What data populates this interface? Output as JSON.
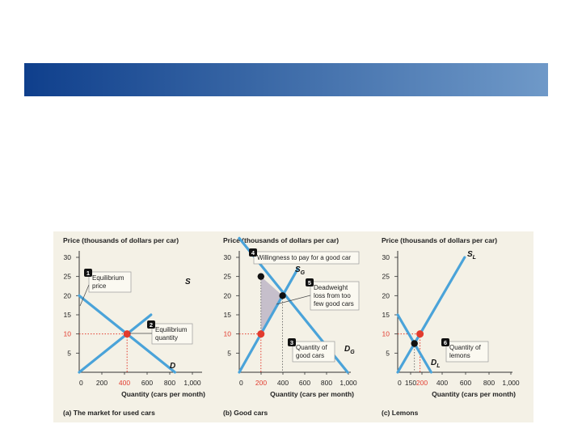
{
  "slide": {
    "banner_color_start": "#0f3f8c",
    "banner_color_end": "#6f99c8",
    "panel_bg": "#f4f1e6"
  },
  "colors": {
    "curve": "#4aa3d9",
    "equilibrium_red": "#e23b2e",
    "black_point": "#111111",
    "deadweight_fill": "#c6bfcb",
    "note_fill": "#fbf9f1"
  },
  "chart_data": [
    {
      "type": "line",
      "title": "(a) The market for used cars",
      "ylabel": "Price (thousands of dollars per car)",
      "xlabel": "Quantity (cars per month)",
      "xlim": [
        0,
        1000
      ],
      "ylim": [
        0,
        30
      ],
      "x_ticks": [
        "0",
        "200",
        "400",
        "600",
        "800",
        "1,000"
      ],
      "y_ticks": [
        "5",
        "10",
        "15",
        "20",
        "25",
        "30"
      ],
      "highlight_x_tick": "400",
      "highlight_y_tick": "10",
      "series": [
        {
          "name": "S",
          "points": [
            [
              0,
              0
            ],
            [
              600,
              15
            ]
          ]
        },
        {
          "name": "D",
          "points": [
            [
              0,
              20
            ],
            [
              800,
              0
            ]
          ]
        }
      ],
      "equilibrium": {
        "x": 400,
        "y": 10
      },
      "annotations": [
        {
          "num": "1",
          "text": [
            "Equilibrium",
            "price"
          ]
        },
        {
          "num": "2",
          "text": [
            "Equilibrium",
            "quantity"
          ]
        }
      ]
    },
    {
      "type": "line",
      "title": "(b) Good cars",
      "ylabel": "Price (thousands of dollars per car)",
      "xlabel": "Quantity (cars per month)",
      "xlim": [
        0,
        1000
      ],
      "ylim": [
        0,
        30
      ],
      "x_ticks": [
        "0",
        "200",
        "400",
        "600",
        "800",
        "1,000"
      ],
      "y_ticks": [
        "5",
        "10",
        "15",
        "20",
        "25",
        "30"
      ],
      "highlight_x_tick": "200",
      "highlight_y_tick": "10",
      "series": [
        {
          "name": "S",
          "sub": "G",
          "points": [
            [
              0,
              0
            ],
            [
              400,
              20
            ],
            [
              540,
              27
            ]
          ]
        },
        {
          "name": "D",
          "sub": "G",
          "points": [
            [
              0,
              35
            ],
            [
              1000,
              0
            ]
          ]
        }
      ],
      "market_point": {
        "x": 200,
        "y": 10
      },
      "willingness_point": {
        "x": 200,
        "y": 25
      },
      "efficient_point": {
        "x": 400,
        "y": 20
      },
      "deadweight": [
        [
          200,
          25
        ],
        [
          400,
          20
        ],
        [
          200,
          10
        ]
      ],
      "annotations": [
        {
          "num": "4",
          "text": [
            "Willingness to pay for a good car"
          ]
        },
        {
          "num": "5",
          "text": [
            "Deadweight",
            "loss from too",
            "few good cars"
          ]
        },
        {
          "num": "3",
          "text": [
            "Quantity of",
            "good cars"
          ]
        }
      ]
    },
    {
      "type": "line",
      "title": "(c) Lemons",
      "ylabel": "Price (thousands of dollars per car)",
      "xlabel": "Quantity (cars per month)",
      "xlim": [
        0,
        1000
      ],
      "ylim": [
        0,
        30
      ],
      "x_ticks": [
        "0",
        "150",
        "200",
        "400",
        "600",
        "800",
        "1,000"
      ],
      "y_ticks": [
        "5",
        "10",
        "15",
        "20",
        "25",
        "30"
      ],
      "highlight_x_tick": "200",
      "highlight_y_tick": "10",
      "series": [
        {
          "name": "S",
          "sub": "L",
          "points": [
            [
              0,
              0
            ],
            [
              600,
              30
            ]
          ]
        },
        {
          "name": "D",
          "sub": "L",
          "points": [
            [
              0,
              15
            ],
            [
              300,
              0
            ]
          ]
        }
      ],
      "market_point": {
        "x": 200,
        "y": 10
      },
      "efficient_point": {
        "x": 150,
        "y": 7.5
      },
      "annotations": [
        {
          "num": "6",
          "text": [
            "Quantity of",
            "lemons"
          ]
        }
      ]
    }
  ]
}
